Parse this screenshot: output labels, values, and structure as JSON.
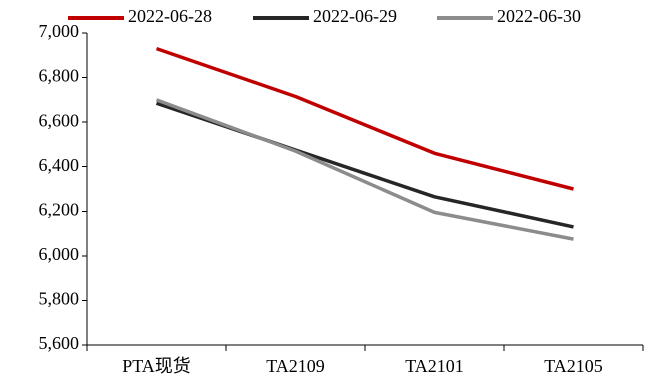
{
  "chart_data": {
    "type": "line",
    "categories": [
      "PTA现货",
      "TA2109",
      "TA2101",
      "TA2105"
    ],
    "series": [
      {
        "name": "2022-06-28",
        "color": "#C00000",
        "values": [
          6930,
          6715,
          6460,
          6300
        ]
      },
      {
        "name": "2022-06-29",
        "color": "#262626",
        "values": [
          6685,
          6475,
          6265,
          6130
        ]
      },
      {
        "name": "2022-06-30",
        "color": "#8C8C8C",
        "values": [
          6700,
          6470,
          6195,
          6075
        ]
      }
    ],
    "title": "",
    "xlabel": "",
    "ylabel": "",
    "ylim": [
      5600,
      7000
    ],
    "yticks": [
      5600,
      5800,
      6000,
      6200,
      6400,
      6600,
      6800,
      7000
    ],
    "ytick_labels": [
      "5,600",
      "5,800",
      "6,000",
      "6,200",
      "6,400",
      "6,600",
      "6,800",
      "7,000"
    ],
    "grid": false,
    "legend": "top"
  }
}
